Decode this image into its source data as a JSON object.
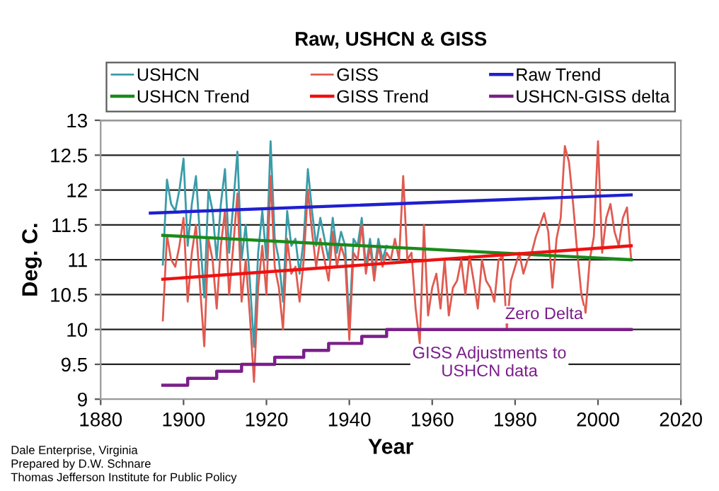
{
  "chart_data": {
    "type": "line",
    "title": "Raw, USHCN & GISS",
    "xlabel": "Year",
    "ylabel": "Deg. C.",
    "xlim": [
      1880,
      2020
    ],
    "xticks": [
      1880,
      1900,
      1920,
      1940,
      1960,
      1980,
      2000,
      2020
    ],
    "ylim": [
      9,
      13
    ],
    "yticks": [
      9,
      9.5,
      10,
      10.5,
      11,
      11.5,
      12,
      12.5,
      13
    ],
    "grid": "y",
    "legend": "top",
    "line_style": "solid",
    "marker": "none",
    "series": [
      {
        "name": "USHCN",
        "color": "#3a9ca8",
        "x": [
          1895,
          1896,
          1897,
          1898,
          1899,
          1900,
          1901,
          1902,
          1903,
          1904,
          1905,
          1906,
          1907,
          1908,
          1909,
          1910,
          1911,
          1912,
          1913,
          1914,
          1915,
          1916,
          1917,
          1918,
          1919,
          1920,
          1921,
          1922,
          1923,
          1924,
          1925,
          1926,
          1927,
          1928,
          1929,
          1930,
          1931,
          1932,
          1933,
          1934,
          1935,
          1936,
          1937,
          1938,
          1939,
          1940,
          1941,
          1942,
          1943,
          1944,
          1945,
          1946,
          1947,
          1948,
          1949
        ],
        "values": [
          10.93,
          12.15,
          11.8,
          11.7,
          12.0,
          12.45,
          11.2,
          11.8,
          12.2,
          11.3,
          10.46,
          12.0,
          11.7,
          11.0,
          11.8,
          12.3,
          11.1,
          11.8,
          12.55,
          11.0,
          11.5,
          10.7,
          9.75,
          11.1,
          11.7,
          11.0,
          12.7,
          11.3,
          11.0,
          10.4,
          11.7,
          11.2,
          11.3,
          10.8,
          11.3,
          12.3,
          11.7,
          11.2,
          11.6,
          11.3,
          11.0,
          11.6,
          11.1,
          11.4,
          11.2,
          10.05,
          11.3,
          11.2,
          11.6,
          10.9,
          11.3,
          10.8,
          11.3,
          11.0,
          11.2
        ]
      },
      {
        "name": "GISS",
        "color": "#e05a50",
        "x": [
          1895,
          1896,
          1897,
          1898,
          1899,
          1900,
          1901,
          1902,
          1903,
          1904,
          1905,
          1906,
          1907,
          1908,
          1909,
          1910,
          1911,
          1912,
          1913,
          1914,
          1915,
          1916,
          1917,
          1918,
          1919,
          1920,
          1921,
          1922,
          1923,
          1924,
          1925,
          1926,
          1927,
          1928,
          1929,
          1930,
          1931,
          1932,
          1933,
          1934,
          1935,
          1936,
          1937,
          1938,
          1939,
          1940,
          1941,
          1942,
          1943,
          1944,
          1945,
          1946,
          1947,
          1948,
          1949,
          1950,
          1951,
          1952,
          1953,
          1954,
          1955,
          1956,
          1957,
          1958,
          1959,
          1960,
          1961,
          1962,
          1963,
          1964,
          1965,
          1966,
          1967,
          1968,
          1969,
          1970,
          1971,
          1972,
          1973,
          1974,
          1975,
          1976,
          1977,
          1978,
          1979,
          1980,
          1981,
          1982,
          1983,
          1984,
          1985,
          1986,
          1987,
          1988,
          1989,
          1990,
          1991,
          1992,
          1993,
          1994,
          1995,
          1996,
          1997,
          1998,
          1999,
          2000,
          2001,
          2002,
          2003,
          2004,
          2005,
          2006,
          2007,
          2008
        ],
        "values": [
          10.13,
          11.35,
          11.0,
          10.9,
          11.2,
          11.6,
          10.4,
          11.1,
          11.5,
          10.6,
          9.76,
          11.3,
          11.0,
          10.3,
          11.2,
          11.7,
          10.5,
          11.2,
          11.95,
          10.4,
          11.0,
          10.2,
          9.25,
          10.6,
          11.2,
          10.5,
          12.2,
          10.9,
          10.6,
          10.0,
          11.3,
          10.8,
          10.9,
          10.4,
          11.0,
          12.0,
          11.4,
          10.9,
          11.3,
          11.0,
          10.7,
          11.4,
          10.9,
          11.2,
          11.0,
          9.85,
          11.1,
          11.0,
          11.5,
          10.8,
          11.2,
          10.7,
          11.2,
          10.9,
          11.1,
          11.0,
          11.3,
          11.0,
          12.2,
          11.0,
          11.1,
          10.3,
          9.8,
          11.5,
          10.2,
          10.6,
          10.8,
          10.3,
          11.0,
          10.2,
          10.6,
          10.7,
          11.0,
          10.5,
          11.05,
          10.7,
          10.3,
          11.0,
          10.7,
          10.6,
          10.4,
          11.0,
          11.05,
          10.0,
          10.7,
          10.9,
          11.1,
          10.8,
          11.0,
          11.1,
          11.33,
          11.5,
          11.67,
          11.4,
          10.6,
          11.3,
          11.6,
          12.63,
          12.4,
          11.8,
          11.1,
          10.5,
          10.24,
          11.0,
          11.33,
          12.7,
          11.1,
          11.6,
          11.8,
          11.4,
          11.2,
          11.6,
          11.75,
          11.0
        ]
      },
      {
        "name": "Raw Trend",
        "color": "#1f1fcf",
        "x": [
          1892,
          2008
        ],
        "values": [
          11.67,
          11.93
        ]
      },
      {
        "name": "USHCN Trend",
        "color": "#1a8a1a",
        "x": [
          1895,
          2008
        ],
        "values": [
          11.35,
          11.0
        ]
      },
      {
        "name": "GISS Trend",
        "color": "#ee1111",
        "x": [
          1895,
          2008
        ],
        "values": [
          10.72,
          11.2
        ]
      },
      {
        "name": "USHCN-GISS delta",
        "color": "#7a1f8a",
        "type": "step",
        "x": [
          1895,
          1901,
          1908,
          1914,
          1922,
          1929,
          1935,
          1943,
          1949,
          2008
        ],
        "values": [
          9.2,
          9.3,
          9.4,
          9.5,
          9.6,
          9.7,
          9.8,
          9.9,
          10.0,
          10.0
        ]
      }
    ],
    "annotations": [
      {
        "text": "Zero Delta",
        "x": 1987,
        "y": 10.1
      },
      "GISS Adjustments to\nUSHCN data",
      "Dale Enterprise, Virginia\nPrepared by D.W. Schnare\nThomas Jefferson Institute for Public Policy"
    ]
  }
}
